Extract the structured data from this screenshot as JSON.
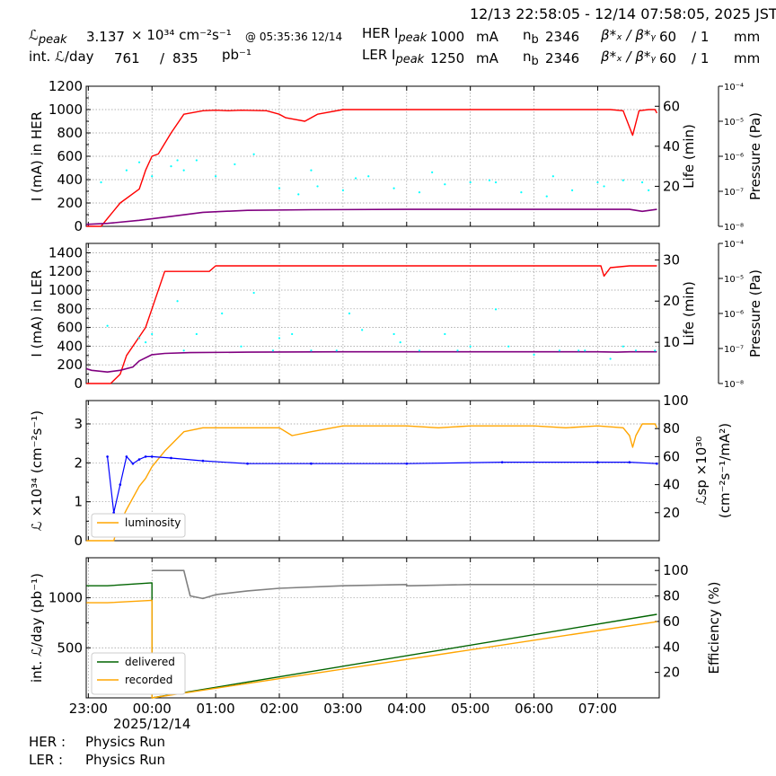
{
  "header": {
    "time_range": "12/13 22:58:05 - 12/14 07:58:05, 2025 JST",
    "lpeak_label": "ℒ",
    "lpeak_sub": "peak",
    "lpeak_value": "3.137",
    "lpeak_unit": "× 10³⁴ cm⁻²s⁻¹",
    "lpeak_time": "@ 05:35:36 12/14",
    "intl_label": "int. ℒ/day",
    "intl_value": "761",
    "intl_sep": "/",
    "intl_total": "835",
    "intl_unit": "pb⁻¹",
    "her_label": "HER I",
    "ler_label": "LER I",
    "peak_sub": "peak",
    "her_value": "1000",
    "ler_value": "1250",
    "ma": "mA",
    "nb_label": "n",
    "nb_sub": "b",
    "her_nb": "2346",
    "ler_nb": "2346",
    "beta_label": "β*ₓ / β*ᵧ",
    "her_beta": "60",
    "ler_beta": "60",
    "beta_sep": "/ 1",
    "mm": "mm"
  },
  "footer": {
    "her_label": "HER :",
    "her_status": "Physics Run",
    "ler_label": "LER :",
    "ler_status": "Physics Run"
  },
  "colors": {
    "current": "#ff0000",
    "life": "#800080",
    "pressure": "#00ffff",
    "luminosity": "#ffa500",
    "specific": "#0000ff",
    "delivered": "#006400",
    "recorded": "#ffa500",
    "efficiency": "#808080"
  },
  "x_axis": {
    "ticks": [
      "23:00",
      "00:00",
      "01:00",
      "02:00",
      "03:00",
      "04:00",
      "05:00",
      "06:00",
      "07:00"
    ],
    "tick_hours": [
      0,
      1,
      2,
      3,
      4,
      5,
      6,
      7,
      8
    ],
    "range_hours": [
      -0.033,
      8.967
    ],
    "date_label": "2025/12/14"
  },
  "chart_data": [
    {
      "type": "line",
      "name": "her",
      "ylabel": "I (mA) in HER",
      "ylim": [
        0,
        1200
      ],
      "yticks": [
        0,
        200,
        400,
        600,
        800,
        1000,
        1200
      ],
      "y2label": "Life (min)",
      "y2lim": [
        0,
        70
      ],
      "y2ticks": [
        20,
        40,
        60
      ],
      "y3label": "Pressure (Pa)",
      "y3ticks": [
        "10⁻⁸",
        "10⁻⁷",
        "10⁻⁶",
        "10⁻⁵",
        "10⁻⁴"
      ],
      "grid": true,
      "series": [
        {
          "role": "current",
          "x": [
            -0.03,
            0.2,
            0.5,
            0.8,
            0.9,
            1.0,
            1.1,
            1.3,
            1.5,
            1.8,
            2.0,
            2.2,
            2.4,
            2.8,
            3.0,
            3.1,
            3.4,
            3.6,
            4.0,
            5.0,
            6.0,
            7.0,
            8.0,
            8.2,
            8.4,
            8.55,
            8.65,
            8.8,
            8.9,
            8.93
          ],
          "y": [
            0,
            0,
            200,
            320,
            480,
            600,
            620,
            800,
            960,
            990,
            995,
            990,
            995,
            990,
            960,
            930,
            900,
            960,
            1000,
            1000,
            1000,
            1000,
            1000,
            1000,
            990,
            780,
            990,
            1000,
            1000,
            970
          ]
        },
        {
          "role": "life",
          "x": [
            -0.03,
            0.3,
            0.8,
            1.3,
            1.8,
            2.5,
            3.5,
            5,
            7,
            8.5,
            8.7,
            8.93
          ],
          "y": [
            1,
            1.5,
            3,
            5,
            7,
            8,
            8.3,
            8.5,
            8.5,
            8.5,
            7.5,
            8.5
          ]
        },
        {
          "role": "pressure",
          "x": [
            0.2,
            0.6,
            0.8,
            1.0,
            1.3,
            1.4,
            1.5,
            1.7,
            2.0,
            2.3,
            2.6,
            3.0,
            3.3,
            3.6,
            4.0,
            4.4,
            4.8,
            5.2,
            5.6,
            6.0,
            6.4,
            6.8,
            7.2,
            7.6,
            8.0,
            8.4,
            8.8
          ],
          "y": [
            22,
            28,
            32,
            25,
            30,
            33,
            28,
            33,
            25,
            31,
            36,
            19,
            16,
            20,
            18,
            25,
            19,
            17,
            21,
            22,
            22,
            17,
            15,
            18,
            22,
            23,
            18
          ],
          "extra_x": [
            3.5,
            4.2,
            5.4,
            6.3,
            7.3,
            8.1,
            8.7
          ],
          "extra_y": [
            28,
            24,
            27,
            23,
            25,
            20,
            22
          ]
        }
      ]
    },
    {
      "type": "line",
      "name": "ler",
      "ylabel": "I (mA) in LER",
      "ylim": [
        0,
        1500
      ],
      "yticks": [
        0,
        200,
        400,
        600,
        800,
        1000,
        1200,
        1400
      ],
      "y2label": "Life (min)",
      "y2lim": [
        0,
        34
      ],
      "y2ticks": [
        10,
        20,
        30
      ],
      "y3label": "Pressure (Pa)",
      "y3ticks": [
        "10⁻⁸",
        "10⁻⁷",
        "10⁻⁶",
        "10⁻⁵",
        "10⁻⁴"
      ],
      "grid": true,
      "series": [
        {
          "role": "current",
          "x": [
            -0.03,
            0.25,
            0.35,
            0.5,
            0.6,
            0.8,
            0.9,
            1.0,
            1.2,
            1.6,
            1.9,
            2.0,
            2.2,
            4,
            6,
            7.8,
            8.05,
            8.1,
            8.2,
            8.5,
            8.93
          ],
          "y": [
            0,
            0,
            0,
            100,
            300,
            500,
            600,
            800,
            1200,
            1200,
            1200,
            1260,
            1260,
            1260,
            1260,
            1260,
            1260,
            1150,
            1240,
            1260,
            1260
          ]
        },
        {
          "role": "life",
          "x": [
            -0.03,
            0.05,
            0.3,
            0.5,
            0.7,
            0.8,
            1.0,
            1.2,
            1.6,
            2.5,
            4,
            6,
            8,
            8.3,
            8.5,
            8.93
          ],
          "y": [
            3.6,
            3.2,
            2.8,
            3.2,
            4.0,
            5.5,
            7.0,
            7.3,
            7.5,
            7.6,
            7.7,
            7.7,
            7.7,
            7.6,
            7.7,
            7.7
          ]
        },
        {
          "role": "pressure",
          "x": [
            0.3,
            0.8,
            0.9,
            1.0,
            1.4,
            1.5,
            1.7,
            2.1,
            2.6,
            2.9,
            3.0,
            3.5,
            3.9,
            4.1,
            4.3,
            4.8,
            5.2,
            5.6,
            6.0,
            6.4,
            6.6,
            7.0,
            7.4,
            7.8,
            8.2,
            8.4,
            8.9
          ],
          "y": [
            14,
            11,
            10,
            12,
            20,
            8,
            12,
            17,
            22,
            8,
            11,
            8,
            8,
            17,
            13,
            12,
            8,
            12,
            9,
            18,
            9,
            7,
            8,
            8,
            6,
            9,
            8
          ],
          "extra_x": [
            2.4,
            3.2,
            4.9,
            5.8,
            7.7,
            8.6
          ],
          "extra_y": [
            9,
            12,
            10,
            8,
            8,
            8
          ]
        }
      ]
    },
    {
      "type": "line",
      "name": "lum",
      "ylabel": "ℒ ×10³⁴ (cm⁻²s⁻¹)",
      "ylim": [
        0,
        3.6
      ],
      "yticks": [
        0,
        1,
        2,
        3
      ],
      "y2label": "ℒsp ×10³⁰ (cm⁻²s⁻¹/mA²)",
      "y2lim": [
        0,
        100
      ],
      "y2ticks": [
        20,
        40,
        60,
        80,
        100
      ],
      "grid": true,
      "legend": "lower-left",
      "series": [
        {
          "role": "luminosity",
          "name": "luminosity",
          "x": [
            -0.03,
            0.4,
            0.45,
            0.6,
            0.8,
            0.9,
            1.0,
            1.2,
            1.5,
            1.8,
            2.0,
            3.0,
            3.2,
            3.5,
            4.0,
            5.0,
            5.5,
            6.0,
            7.0,
            7.5,
            8.0,
            8.4,
            8.5,
            8.55,
            8.6,
            8.7,
            8.9,
            8.93
          ],
          "y": [
            0,
            0,
            0.3,
            0.8,
            1.4,
            1.6,
            1.9,
            2.3,
            2.8,
            2.9,
            2.9,
            2.9,
            2.7,
            2.8,
            2.95,
            2.95,
            2.9,
            2.95,
            2.95,
            2.9,
            2.95,
            2.9,
            2.7,
            2.4,
            2.7,
            3.0,
            3.0,
            2.9
          ]
        },
        {
          "role": "specific",
          "x": [
            0.3,
            0.4,
            0.5,
            0.6,
            0.7,
            0.8,
            0.9,
            1.0,
            1.3,
            1.8,
            2.5,
            3.5,
            5,
            6.5,
            8.0,
            8.5,
            8.93
          ],
          "y": [
            60,
            20,
            40,
            60,
            55,
            58,
            60,
            60,
            59,
            57,
            55,
            55,
            55,
            56,
            56,
            56,
            55
          ]
        }
      ]
    },
    {
      "type": "line",
      "name": "intl",
      "ylabel": "int. ℒ/day (pb⁻¹)",
      "ylim": [
        0,
        1400
      ],
      "yticks": [
        500,
        1000
      ],
      "y2label": "Efficiency (%)",
      "y2lim": [
        0,
        110
      ],
      "y2ticks": [
        20,
        40,
        60,
        80,
        100
      ],
      "grid": true,
      "legend": "lower-left",
      "series": [
        {
          "role": "delivered",
          "name": "delivered",
          "x": [
            -0.03,
            0.3,
            1.0,
            1.0,
            8.93
          ],
          "y": [
            1120,
            1120,
            1150,
            0,
            835
          ]
        },
        {
          "role": "recorded",
          "name": "recorded",
          "x": [
            -0.03,
            0.3,
            1.0,
            1.0,
            8.93
          ],
          "y": [
            950,
            950,
            975,
            0,
            761
          ]
        },
        {
          "role": "efficiency",
          "x": [
            1.0,
            1.5,
            1.55,
            1.6,
            1.8,
            2.0,
            2.5,
            3.0,
            4.0,
            5.0,
            5.0,
            5.05,
            6.0,
            7.0,
            8.0,
            8.93
          ],
          "y": [
            100,
            100,
            90,
            80,
            78,
            81,
            84,
            86,
            88,
            89,
            88,
            88,
            89,
            89,
            89,
            89
          ]
        }
      ]
    }
  ]
}
